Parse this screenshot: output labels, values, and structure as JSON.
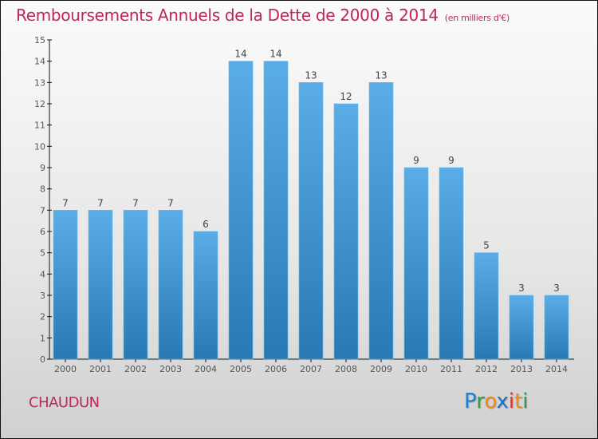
{
  "header": {
    "title": "Remboursements Annuels de la Dette de 2000 à 2014",
    "unit": "(en milliers d'€)"
  },
  "footer": {
    "commune": "CHAUDUN",
    "logo": {
      "letters": [
        {
          "char": "P",
          "color": "#1f7fd0"
        },
        {
          "char": "r",
          "color": "#2ea043"
        },
        {
          "char": "o",
          "color": "#f28a1a"
        },
        {
          "char": "x",
          "color": "#1f6fc8"
        },
        {
          "char": "i",
          "color": "#e2362b"
        },
        {
          "char": "t",
          "color": "#f28a1a"
        },
        {
          "char": "i",
          "color": "#2ea043"
        }
      ]
    }
  },
  "colors": {
    "title": "#c0245c",
    "bar_top": "#5aade6",
    "bar_bottom": "#2878b4"
  },
  "chart_data": {
    "type": "bar",
    "title": "Remboursements Annuels de la Dette de 2000 à 2014 (en milliers d'€)",
    "xlabel": "",
    "ylabel": "",
    "categories": [
      "2000",
      "2001",
      "2002",
      "2003",
      "2004",
      "2005",
      "2006",
      "2007",
      "2008",
      "2009",
      "2010",
      "2011",
      "2012",
      "2013",
      "2014"
    ],
    "values": [
      7,
      7,
      7,
      7,
      6,
      14,
      14,
      13,
      12,
      13,
      9,
      9,
      5,
      3,
      3
    ],
    "ylim": [
      0,
      15
    ],
    "yticks": [
      0,
      1,
      2,
      3,
      4,
      5,
      6,
      7,
      8,
      9,
      10,
      11,
      12,
      13,
      14,
      15
    ],
    "grid": false,
    "legend": "none",
    "data_labels": true
  }
}
